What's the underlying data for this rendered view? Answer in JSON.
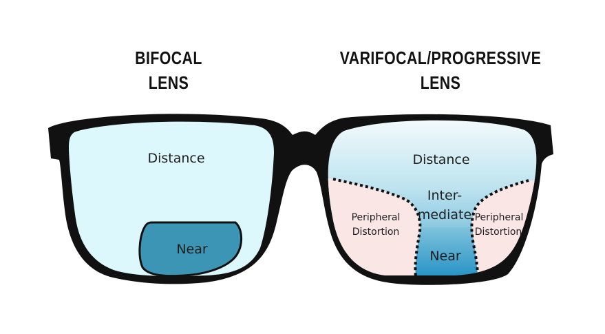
{
  "bifocal": {
    "heading_line1": "BIFOCAL",
    "heading_line2": "LENS",
    "distance_label": "Distance",
    "near_label": "Near"
  },
  "varifocal": {
    "heading_line1": "VARIFOCAL/PROGRESSIVE",
    "heading_line2": "LENS",
    "distance_label": "Distance",
    "intermediate_line1": "Inter-",
    "intermediate_line2": "mediate",
    "near_label": "Near",
    "peripheral_left_line1": "Peripheral",
    "peripheral_left_line2": "Distortion",
    "peripheral_right_line1": "Peripheral",
    "peripheral_right_line2": "Distortion"
  },
  "colors": {
    "frame": "#111111",
    "distance_fill": "#dcf8fc",
    "near_fill": "#3d95b6",
    "peripheral_fill": "#fbe6e6",
    "progressive_top": "#f2fafc",
    "progressive_corridor": "#2f97c6"
  }
}
